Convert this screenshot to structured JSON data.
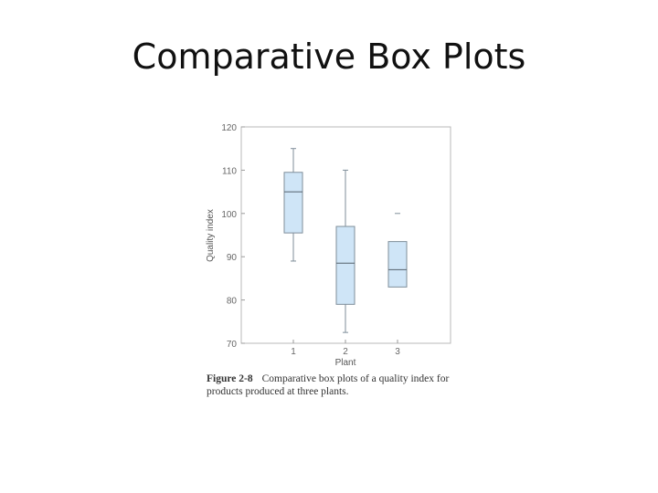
{
  "slide": {
    "title": "Comparative Box Plots"
  },
  "caption": {
    "label": "Figure 2-8",
    "text": "Comparative box plots of a quality index for products produced at three plants."
  },
  "chart_data": {
    "type": "box",
    "title": "",
    "xlabel": "Plant",
    "ylabel": "Quality index",
    "ylim": [
      70,
      120
    ],
    "yticks": [
      70,
      80,
      90,
      100,
      110,
      120
    ],
    "categories": [
      "1",
      "2",
      "3"
    ],
    "grid": false,
    "box_color": "#cfe5f7",
    "boxes": [
      {
        "category": "1",
        "whisker_low": 89,
        "q1": 95.5,
        "median": 105,
        "q3": 109.5,
        "whisker_high": 115,
        "outliers": []
      },
      {
        "category": "2",
        "whisker_low": 72.5,
        "q1": 79,
        "median": 88.5,
        "q3": 97,
        "whisker_high": 110,
        "outliers": []
      },
      {
        "category": "3",
        "whisker_low": 83,
        "q1": 83,
        "median": 87,
        "q3": 93.5,
        "whisker_high": 93.5,
        "outliers": [
          100
        ]
      }
    ]
  }
}
